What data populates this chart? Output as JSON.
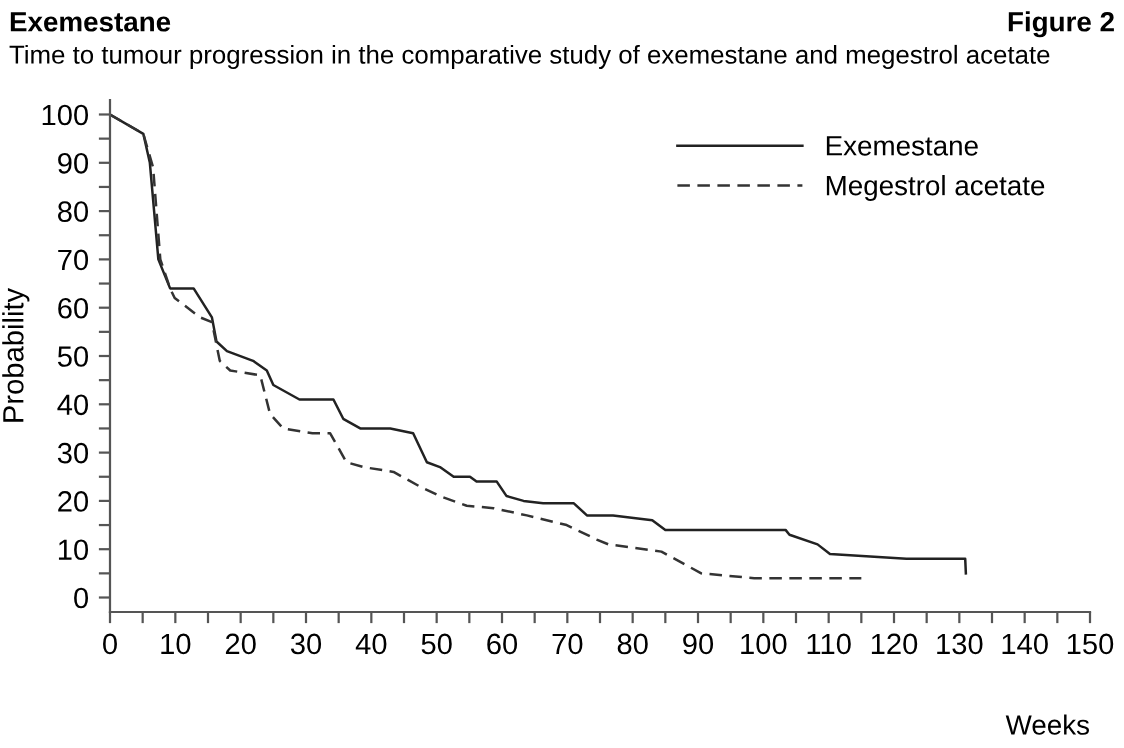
{
  "chart_data": {
    "type": "line",
    "title": "Exemestane",
    "subtitle": "Time to tumour progression in the comparative study of exemestane and megestrol acetate",
    "annotations": [
      "Figure 2"
    ],
    "xlabel": "Weeks",
    "ylabel": "Probability",
    "series": [
      {
        "name": "Exemestane",
        "color": "#222222",
        "line_style": "solid",
        "x": [
          0,
          5.1,
          6.1,
          7.4,
          9.2,
          12.8,
          15.6,
          16.3,
          17.9,
          21.9,
          24,
          25,
          29,
          34.2,
          35.7,
          38.3,
          42.9,
          46.4,
          48.5,
          50.5,
          52.6,
          55.1,
          56.1,
          59.2,
          60.7,
          63.3,
          66.3,
          71,
          73,
          77,
          83,
          85,
          103.4,
          104,
          108.3,
          110.2,
          121.9,
          130.9,
          131
        ],
        "values": [
          100,
          96,
          90,
          70,
          64,
          64,
          58,
          53,
          51,
          49,
          47,
          44,
          41,
          41,
          37,
          35,
          35,
          34,
          28,
          27,
          25,
          25,
          24,
          24,
          21,
          20,
          19.5,
          19.5,
          17,
          17,
          16,
          14,
          14,
          13,
          11,
          9,
          8,
          8,
          5
        ]
      },
      {
        "name": "Megestrol acetate",
        "color": "#333333",
        "line_style": "dashed",
        "x": [
          0,
          5.1,
          6.6,
          7.7,
          9.2,
          9.9,
          13.8,
          15.6,
          16.8,
          18.4,
          23,
          24.5,
          26.5,
          31,
          33.7,
          36.2,
          38.8,
          43.4,
          47.4,
          50.5,
          54.6,
          58.7,
          63.8,
          69.9,
          74.5,
          76.3,
          84.4,
          90.5,
          98.6,
          115
        ],
        "values": [
          100,
          96,
          89,
          70,
          64,
          62,
          58,
          57,
          49,
          47,
          46,
          38,
          35,
          34,
          34,
          28,
          27,
          26,
          23,
          21,
          19,
          18.5,
          17,
          15,
          12,
          11,
          9.5,
          5,
          4,
          4
        ]
      }
    ],
    "xlim": [
      0,
      150
    ],
    "ylim": [
      -3,
      103
    ],
    "xticks": [
      0,
      {
        "value": 5,
        "label": null
      },
      10,
      {
        "value": 15,
        "label": null
      },
      20,
      {
        "value": 25,
        "label": null
      },
      30,
      {
        "value": 35,
        "label": null
      },
      40,
      {
        "value": 45,
        "label": null
      },
      50,
      {
        "value": 55,
        "label": null
      },
      60,
      {
        "value": 65,
        "label": null
      },
      70,
      {
        "value": 75,
        "label": null
      },
      80,
      {
        "value": 85,
        "label": null
      },
      90,
      {
        "value": 95,
        "label": null
      },
      100,
      {
        "value": 105,
        "label": null
      },
      110,
      {
        "value": 115,
        "label": null
      },
      120,
      {
        "value": 125,
        "label": null
      },
      130,
      {
        "value": 135,
        "label": null
      },
      140,
      {
        "value": 145,
        "label": null
      },
      150
    ],
    "yticks": [
      0,
      {
        "value": 5,
        "label": null
      },
      10,
      {
        "value": 15,
        "label": null
      },
      20,
      {
        "value": 25,
        "label": null
      },
      30,
      {
        "value": 35,
        "label": null
      },
      40,
      {
        "value": 45,
        "label": null
      },
      50,
      {
        "value": 55,
        "label": null
      },
      60,
      {
        "value": 65,
        "label": null
      },
      70,
      {
        "value": 75,
        "label": null
      },
      80,
      {
        "value": 85,
        "label": null
      },
      90,
      {
        "value": 95,
        "label": null
      },
      100
    ],
    "grid": false,
    "legend": "top right"
  }
}
